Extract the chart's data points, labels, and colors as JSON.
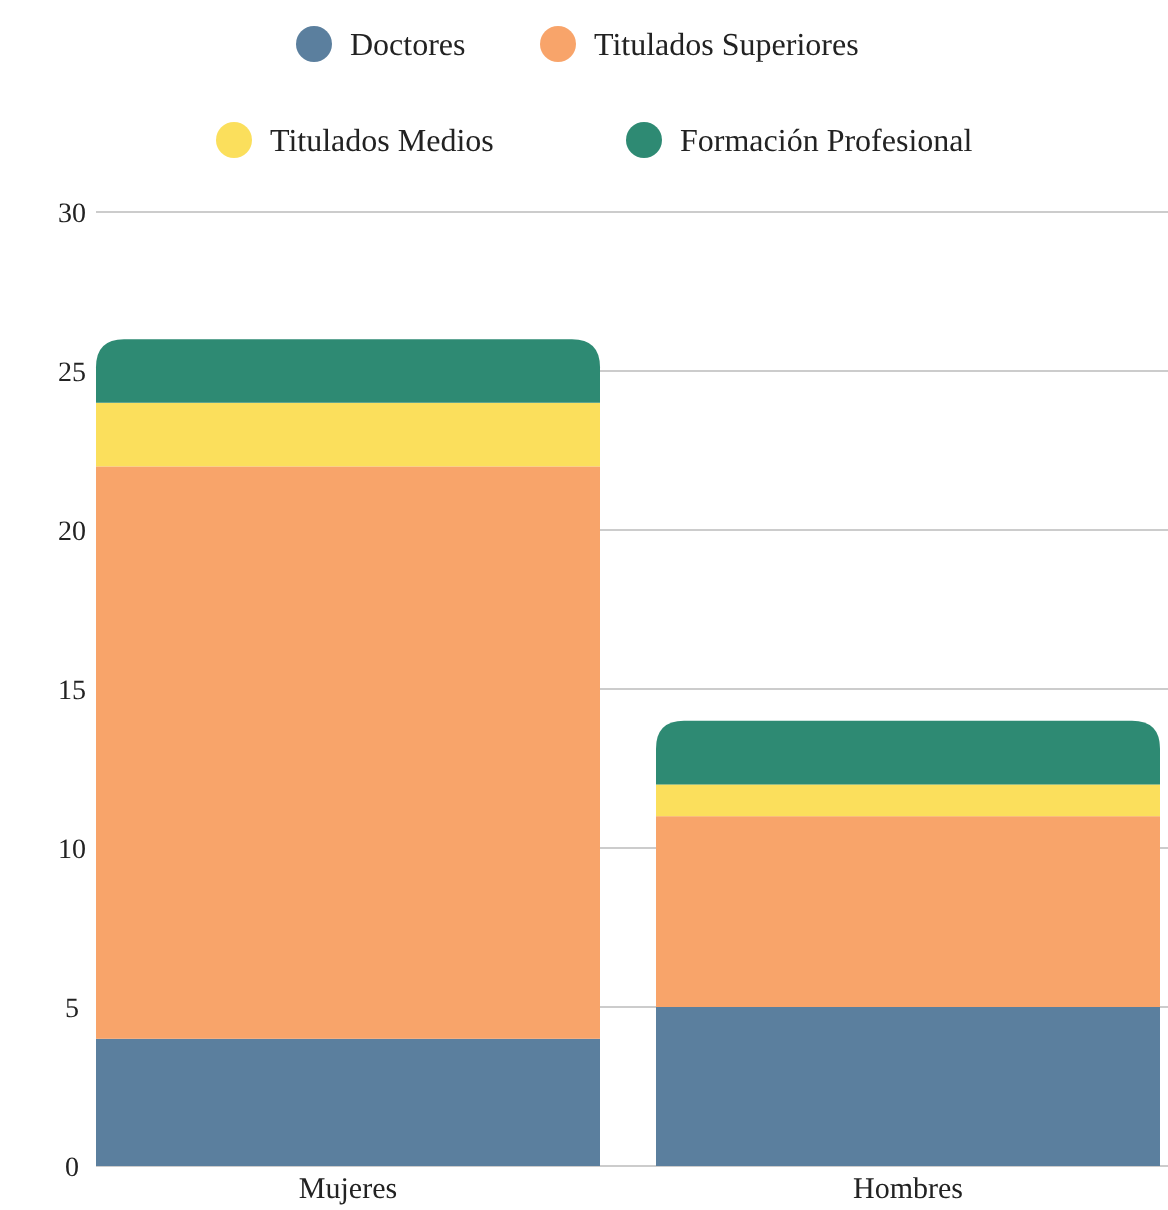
{
  "chart_data": {
    "type": "bar",
    "stacked": true,
    "categories": [
      "Mujeres",
      "Hombres"
    ],
    "series": [
      {
        "name": "Doctores",
        "color": "#5b7f9e",
        "values": [
          4,
          5
        ]
      },
      {
        "name": "Titulados Superiores",
        "color": "#f8a46a",
        "values": [
          18,
          6
        ]
      },
      {
        "name": "Titulados Medios",
        "color": "#fbdf5c",
        "values": [
          2,
          1
        ]
      },
      {
        "name": "Formación Profesional",
        "color": "#2e8a73",
        "values": [
          2,
          2
        ]
      }
    ],
    "ylim": [
      0,
      30
    ],
    "yticks": [
      0,
      5,
      10,
      15,
      20,
      25,
      30
    ],
    "grid": "y",
    "legend": "top"
  }
}
